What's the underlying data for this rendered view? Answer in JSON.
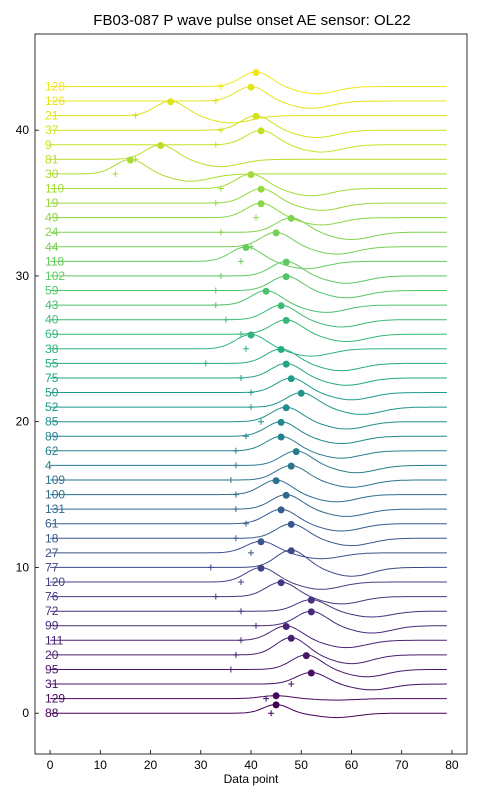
{
  "chart_data": {
    "type": "line",
    "title": "FB03-087 P wave pulse onset AE sensor: OL22",
    "xlabel": "Data point",
    "ylabel": "",
    "xlim": [
      -3,
      83
    ],
    "ylim": [
      -2.8,
      46.6
    ],
    "xticks": [
      0,
      10,
      20,
      30,
      40,
      50,
      60,
      70,
      80
    ],
    "yticks": [
      0,
      10,
      20,
      30,
      40
    ],
    "xtick_labels": [
      "0",
      "10",
      "20",
      "30",
      "40",
      "50",
      "60",
      "70",
      "80"
    ],
    "ytick_labels": [
      "0",
      "10",
      "20",
      "30",
      "40"
    ],
    "x_range": [
      0,
      79
    ],
    "colormap": "viridis",
    "series": [
      {
        "name": "88",
        "offset": 0,
        "pick": 44,
        "peak": 45,
        "shape": "bump",
        "amp": 0.6,
        "width": 2.5,
        "color": "#440154"
      },
      {
        "name": "129",
        "offset": 1,
        "pick": 43,
        "peak": 45,
        "shape": "bump",
        "amp": 0.2,
        "width": 3.0,
        "color": "#46085c"
      },
      {
        "name": "31",
        "offset": 2,
        "pick": 48,
        "peak": 52,
        "shape": "bump",
        "amp": 0.8,
        "width": 3.0,
        "color": "#471063"
      },
      {
        "name": "95",
        "offset": 3,
        "pick": 36,
        "peak": 51,
        "shape": "bump",
        "amp": 1.0,
        "width": 3.0,
        "color": "#481769"
      },
      {
        "name": "20",
        "offset": 4,
        "pick": 37,
        "peak": 48,
        "shape": "bump",
        "amp": 1.2,
        "width": 3.0,
        "color": "#481d6f"
      },
      {
        "name": "111",
        "offset": 5,
        "pick": 38,
        "peak": 47,
        "shape": "bump",
        "amp": 1.0,
        "width": 3.0,
        "color": "#482475"
      },
      {
        "name": "99",
        "offset": 6,
        "pick": 41,
        "peak": 52,
        "shape": "bump",
        "amp": 1.0,
        "width": 3.0,
        "color": "#472a7a"
      },
      {
        "name": "72",
        "offset": 7,
        "pick": 38,
        "peak": 52,
        "shape": "bump",
        "amp": 0.8,
        "width": 3.0,
        "color": "#46307e"
      },
      {
        "name": "76",
        "offset": 8,
        "pick": 33,
        "peak": 46,
        "shape": "bump",
        "amp": 1.0,
        "width": 3.0,
        "color": "#443983"
      },
      {
        "name": "120",
        "offset": 9,
        "pick": 38,
        "peak": 42,
        "shape": "bump",
        "amp": 1.0,
        "width": 3.0,
        "color": "#424086"
      },
      {
        "name": "77",
        "offset": 10,
        "pick": 32,
        "peak": 48,
        "shape": "bump",
        "amp": 1.2,
        "width": 3.0,
        "color": "#3f4788"
      },
      {
        "name": "27",
        "offset": 11,
        "pick": 40,
        "peak": 42,
        "shape": "bump",
        "amp": 0.8,
        "width": 3.0,
        "color": "#3b528b"
      },
      {
        "name": "18",
        "offset": 12,
        "pick": 37,
        "peak": 48,
        "shape": "bump",
        "amp": 1.0,
        "width": 3.0,
        "color": "#38598c"
      },
      {
        "name": "61",
        "offset": 13,
        "pick": 39,
        "peak": 46,
        "shape": "bump",
        "amp": 1.0,
        "width": 3.0,
        "color": "#355f8d"
      },
      {
        "name": "131",
        "offset": 14,
        "pick": 37,
        "peak": 47,
        "shape": "bump",
        "amp": 1.0,
        "width": 3.0,
        "color": "#31688e"
      },
      {
        "name": "100",
        "offset": 15,
        "pick": 37,
        "peak": 45,
        "shape": "bump",
        "amp": 1.0,
        "width": 3.0,
        "color": "#2e6e8e"
      },
      {
        "name": "109",
        "offset": 16,
        "pick": 36,
        "peak": 48,
        "shape": "bump",
        "amp": 1.0,
        "width": 3.0,
        "color": "#2c738e"
      },
      {
        "name": "4",
        "offset": 17,
        "pick": 37,
        "peak": 49,
        "shape": "bump",
        "amp": 1.0,
        "width": 3.0,
        "color": "#297b8e"
      },
      {
        "name": "62",
        "offset": 18,
        "pick": 37,
        "peak": 46,
        "shape": "bump",
        "amp": 1.0,
        "width": 3.0,
        "color": "#26818e"
      },
      {
        "name": "89",
        "offset": 19,
        "pick": 39,
        "peak": 46,
        "shape": "bump",
        "amp": 1.0,
        "width": 3.0,
        "color": "#24868e"
      },
      {
        "name": "85",
        "offset": 20,
        "pick": 42,
        "peak": 47,
        "shape": "bump",
        "amp": 1.0,
        "width": 3.0,
        "color": "#218f8d"
      },
      {
        "name": "52",
        "offset": 21,
        "pick": 40,
        "peak": 50,
        "shape": "bump",
        "amp": 1.0,
        "width": 3.0,
        "color": "#1f958b"
      },
      {
        "name": "50",
        "offset": 22,
        "pick": 40,
        "peak": 48,
        "shape": "bump",
        "amp": 1.0,
        "width": 3.0,
        "color": "#1e9b8a"
      },
      {
        "name": "75",
        "offset": 23,
        "pick": 38,
        "peak": 47,
        "shape": "bump",
        "amp": 1.0,
        "width": 3.0,
        "color": "#21a585"
      },
      {
        "name": "55",
        "offset": 24,
        "pick": 31,
        "peak": 46,
        "shape": "bump",
        "amp": 1.0,
        "width": 3.0,
        "color": "#25ab82"
      },
      {
        "name": "38",
        "offset": 25,
        "pick": 39,
        "peak": 40,
        "shape": "bump",
        "amp": 1.0,
        "width": 3.0,
        "color": "#2eb37c"
      },
      {
        "name": "69",
        "offset": 26,
        "pick": 38,
        "peak": 47,
        "shape": "bump",
        "amp": 1.0,
        "width": 3.0,
        "color": "#35b779"
      },
      {
        "name": "40",
        "offset": 27,
        "pick": 35,
        "peak": 46,
        "shape": "bump",
        "amp": 1.0,
        "width": 3.0,
        "color": "#3dbc74"
      },
      {
        "name": "43",
        "offset": 28,
        "pick": 33,
        "peak": 43,
        "shape": "bump",
        "amp": 1.0,
        "width": 3.0,
        "color": "#4ac16d"
      },
      {
        "name": "59",
        "offset": 29,
        "pick": 33,
        "peak": 47,
        "shape": "bump",
        "amp": 1.0,
        "width": 3.0,
        "color": "#52c569"
      },
      {
        "name": "102",
        "offset": 30,
        "pick": 34,
        "peak": 47,
        "shape": "bump",
        "amp": 1.0,
        "width": 3.0,
        "color": "#5ec962"
      },
      {
        "name": "118",
        "offset": 31,
        "pick": 38,
        "peak": 39,
        "shape": "bump",
        "amp": 1.0,
        "width": 3.0,
        "color": "#65cb5e"
      },
      {
        "name": "44",
        "offset": 32,
        "pick": 40,
        "peak": 45,
        "shape": "bump",
        "amp": 1.0,
        "width": 3.0,
        "color": "#75d054"
      },
      {
        "name": "24",
        "offset": 33,
        "pick": 34,
        "peak": 48,
        "shape": "bump",
        "amp": 1.0,
        "width": 3.0,
        "color": "#7fd34e"
      },
      {
        "name": "49",
        "offset": 34,
        "pick": 41,
        "peak": 42,
        "shape": "bump",
        "amp": 1.0,
        "width": 3.0,
        "color": "#8bd646"
      },
      {
        "name": "19",
        "offset": 35,
        "pick": 33,
        "peak": 42,
        "shape": "bump",
        "amp": 1.0,
        "width": 3.0,
        "color": "#95d840"
      },
      {
        "name": "110",
        "offset": 36,
        "pick": 34,
        "peak": 40,
        "shape": "bump",
        "amp": 1.0,
        "width": 3.0,
        "color": "#a2da37"
      },
      {
        "name": "30",
        "offset": 37,
        "pick": 13,
        "peak": 16,
        "shape": "bump",
        "amp": 1.0,
        "width": 3.0,
        "color": "#acdc30"
      },
      {
        "name": "81",
        "offset": 38,
        "pick": 17,
        "peak": 22,
        "shape": "bump",
        "amp": 1.0,
        "width": 3.0,
        "color": "#bade28"
      },
      {
        "name": "9",
        "offset": 39,
        "pick": 33,
        "peak": 42,
        "shape": "bump",
        "amp": 1.0,
        "width": 3.0,
        "color": "#c5e021"
      },
      {
        "name": "37",
        "offset": 40,
        "pick": 34,
        "peak": 41,
        "shape": "bump",
        "amp": 1.0,
        "width": 3.0,
        "color": "#d2e21b"
      },
      {
        "name": "21",
        "offset": 41,
        "pick": 17,
        "peak": 24,
        "shape": "bump",
        "amp": 1.0,
        "width": 3.0,
        "color": "#dde318"
      },
      {
        "name": "126",
        "offset": 42,
        "pick": 33,
        "peak": 40,
        "shape": "bump",
        "amp": 1.0,
        "width": 3.0,
        "color": "#e7e419"
      },
      {
        "name": "128",
        "offset": 43,
        "pick": 34,
        "peak": 41,
        "shape": "bump",
        "amp": 1.0,
        "width": 3.0,
        "color": "#f1e51d"
      }
    ]
  }
}
